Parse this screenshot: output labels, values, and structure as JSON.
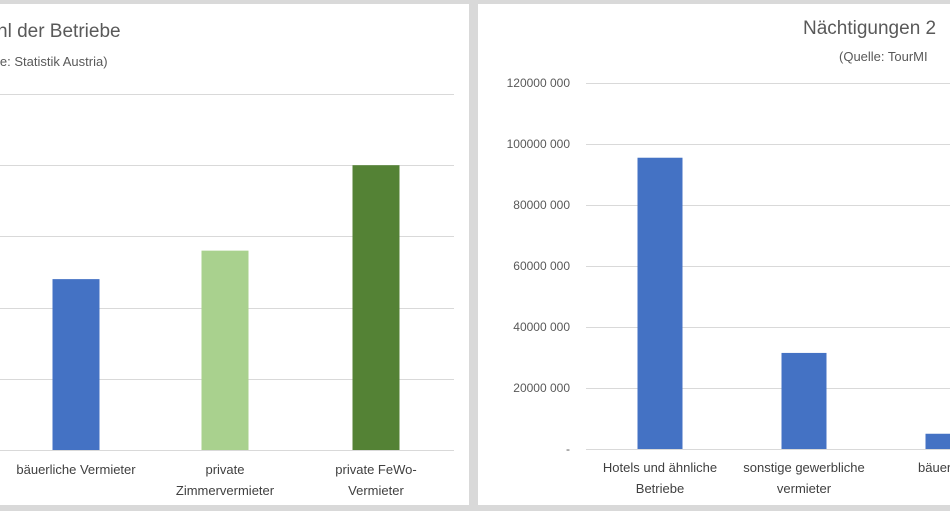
{
  "chart_data": [
    {
      "type": "bar",
      "title": "hl der Betriebe",
      "subtitle": "le: Statistik Austria)",
      "categories": [
        [
          "bäuerliche Vermieter"
        ],
        [
          "private",
          "Zimmervermieter"
        ],
        [
          "private FeWo-",
          "Vermieter"
        ]
      ],
      "values": [
        48,
        56,
        80
      ],
      "ylim": [
        0,
        100
      ],
      "colors": [
        "#4472c4",
        "#a9d18e",
        "#548235"
      ]
    },
    {
      "type": "bar",
      "title": "Nächtigungen 2",
      "subtitle": "(Quelle: TourMI",
      "categories": [
        [
          "Hotels und ähnliche",
          "Betriebe"
        ],
        [
          "sonstige gewerbliche",
          "vermieter"
        ],
        [
          "bäuerliche"
        ]
      ],
      "values": [
        95500000,
        31500000,
        5000000
      ],
      "ylim": [
        0,
        120000000
      ],
      "ytick_labels": [
        "-",
        "20000 000",
        "40000 000",
        "60000 000",
        "80000 000",
        "100000 000",
        "120000 000"
      ],
      "colors": [
        "#4472c4",
        "#4472c4",
        "#4472c4"
      ]
    }
  ]
}
